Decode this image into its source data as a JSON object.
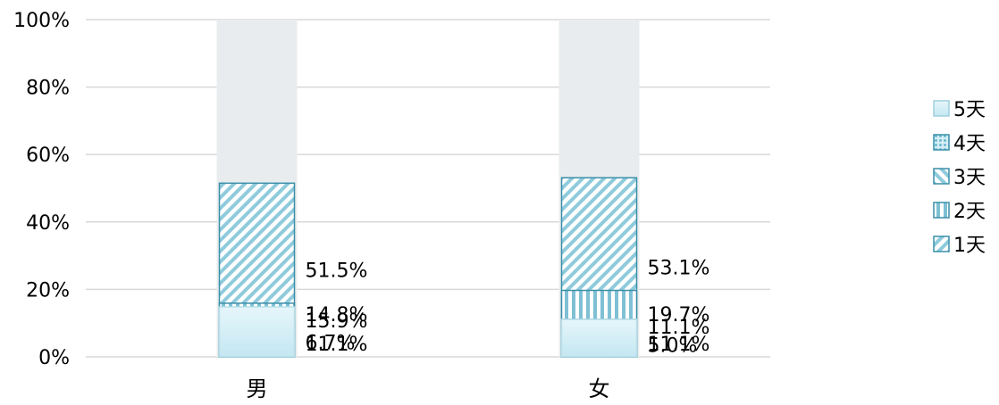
{
  "chart_data": {
    "type": "bar",
    "stacked": true,
    "percent_stacked": true,
    "categories": [
      "男",
      "女"
    ],
    "series": [
      {
        "name": "1天",
        "values": [
          51.5,
          53.1
        ],
        "labels": [
          "51.5%",
          "53.1%"
        ],
        "pattern": "diag-up"
      },
      {
        "name": "2天",
        "values": [
          15.9,
          19.7
        ],
        "labels": [
          "15.9%",
          "19.7%"
        ],
        "pattern": "vertical"
      },
      {
        "name": "3天",
        "values": [
          11.1,
          11.1
        ],
        "labels": [
          "11.1%",
          "11.1%"
        ],
        "pattern": "diag-down"
      },
      {
        "name": "4天",
        "values": [
          6.7,
          5.0
        ],
        "labels": [
          "6.7%",
          "5.0%"
        ],
        "pattern": "dots"
      },
      {
        "name": "5天",
        "values": [
          14.8,
          11.1
        ],
        "labels": [
          "14.8%",
          "11.1%"
        ],
        "pattern": "gradient"
      }
    ],
    "y_ticks": [
      "0%",
      "20%",
      "40%",
      "60%",
      "80%",
      "100%"
    ],
    "ylim": [
      0,
      100
    ],
    "grid": true,
    "legend_position": "right",
    "colors": {
      "accent": "#2e8aa5",
      "light": "#a9d8e6",
      "stroke": "#3a8fa8",
      "grid": "#d9d9d9"
    }
  }
}
